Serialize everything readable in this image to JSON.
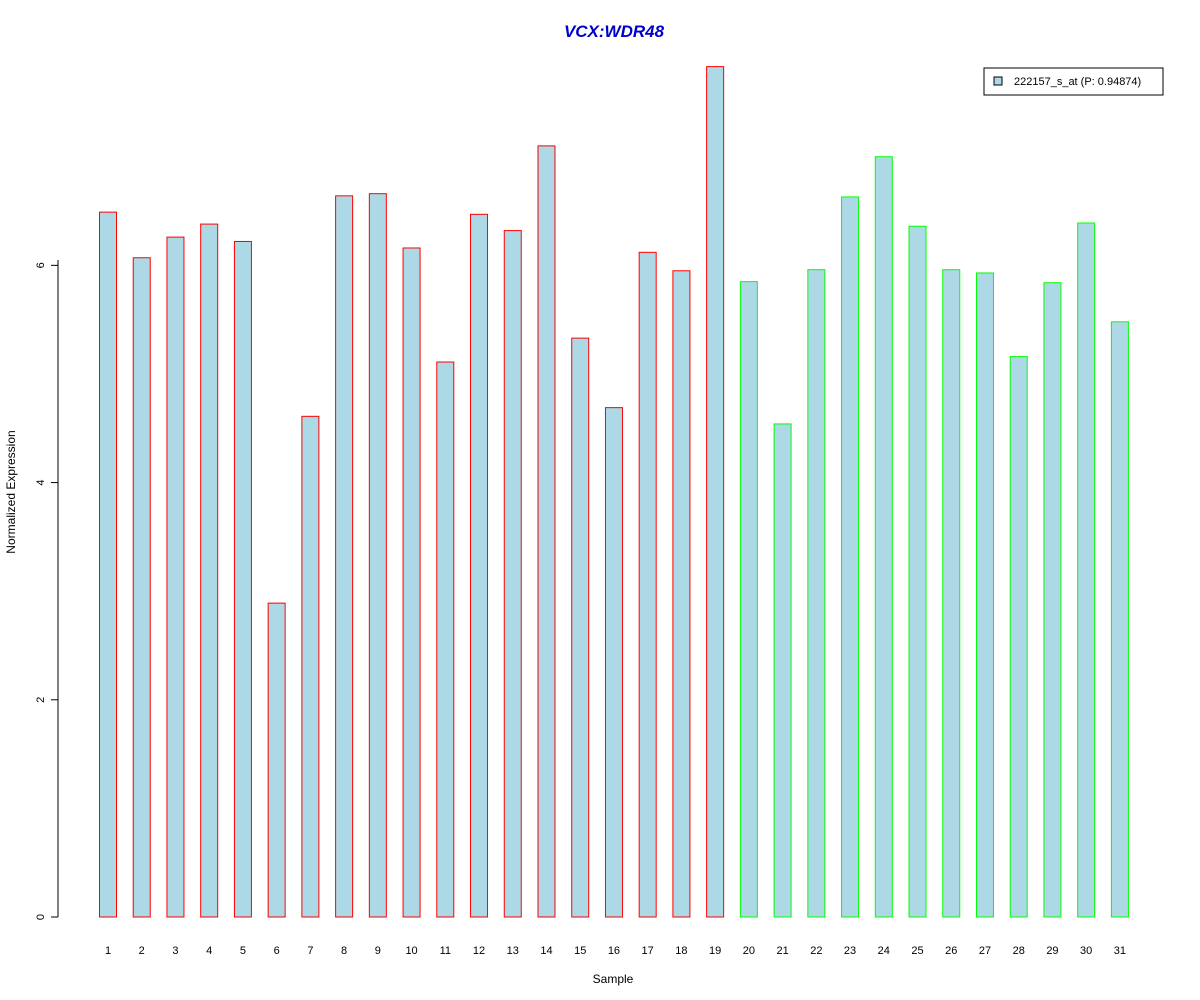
{
  "chart_data": {
    "type": "bar",
    "title": "VCX:WDR48",
    "xlabel": "Sample",
    "ylabel": "Normalized Expression",
    "ylim": [
      0,
      7.9
    ],
    "yticks": [
      0,
      2,
      4,
      6
    ],
    "grid": false,
    "legend_position": "top-right",
    "categories": [
      "1",
      "2",
      "3",
      "4",
      "5",
      "6",
      "7",
      "8",
      "9",
      "10",
      "11",
      "12",
      "13",
      "14",
      "15",
      "16",
      "17",
      "18",
      "19",
      "20",
      "21",
      "22",
      "23",
      "24",
      "25",
      "26",
      "27",
      "28",
      "29",
      "30",
      "31"
    ],
    "series": [
      {
        "name": "222157_s_at (P: 0.94874)",
        "values": [
          6.49,
          6.07,
          6.26,
          6.38,
          6.22,
          2.89,
          4.61,
          6.64,
          6.66,
          6.16,
          5.11,
          6.47,
          6.32,
          7.1,
          5.33,
          4.69,
          6.12,
          5.95,
          7.83,
          5.85,
          4.54,
          5.96,
          6.63,
          7.0,
          6.36,
          5.96,
          5.93,
          5.16,
          5.84,
          6.39,
          5.48
        ],
        "group": [
          "a",
          "a",
          "a",
          "a",
          "a",
          "a",
          "a",
          "a",
          "a",
          "a",
          "a",
          "a",
          "a",
          "a",
          "a",
          "a",
          "a",
          "a",
          "a",
          "b",
          "b",
          "b",
          "b",
          "b",
          "b",
          "b",
          "b",
          "b",
          "b",
          "b",
          "b"
        ]
      }
    ],
    "colors": {
      "fill": "#add8e6",
      "border_group_a": "#ff0000",
      "border_group_b": "#00ff00",
      "title": "#0000cd"
    }
  }
}
